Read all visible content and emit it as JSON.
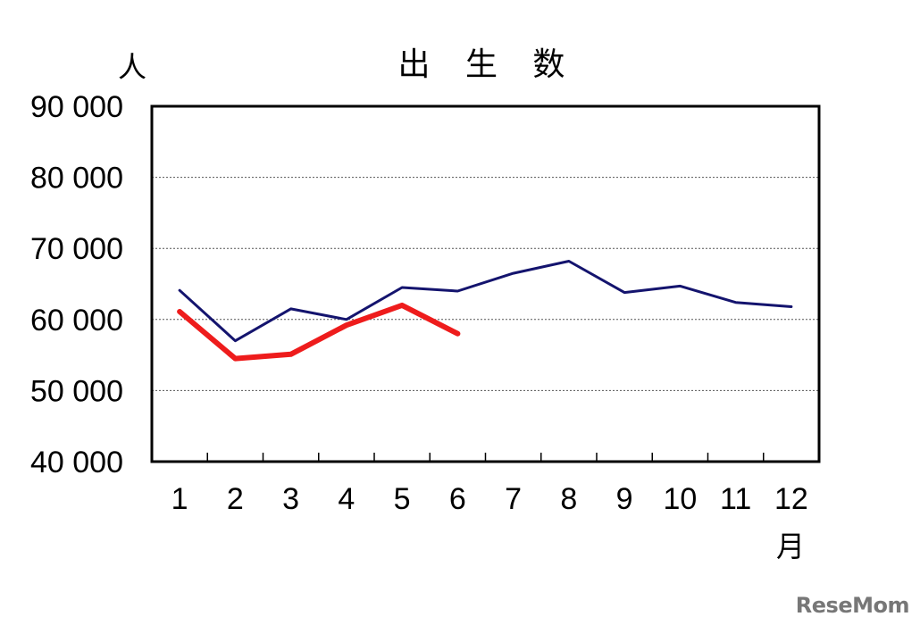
{
  "chart_data": {
    "type": "line",
    "title": "出 生 数",
    "ylabel": "人",
    "xlabel": "月",
    "categories": [
      "1",
      "2",
      "3",
      "4",
      "5",
      "6",
      "7",
      "8",
      "9",
      "10",
      "11",
      "12"
    ],
    "ylim": [
      40000,
      90000
    ],
    "yticks": [
      40000,
      50000,
      60000,
      70000,
      80000,
      90000
    ],
    "ytick_labels": [
      "40 000",
      "50 000",
      "60 000",
      "70 000",
      "80 000",
      "90 000"
    ],
    "grid": true,
    "series": [
      {
        "color": "#14146e",
        "values": [
          64100,
          57000,
          61500,
          60000,
          64500,
          64000,
          66500,
          68200,
          63800,
          64700,
          62400,
          61800
        ]
      },
      {
        "color": "#ee1c1c",
        "values": [
          61100,
          54500,
          55100,
          59200,
          62000,
          58000,
          null,
          null,
          null,
          null,
          null,
          null
        ]
      }
    ]
  },
  "watermark": "ReseMom"
}
